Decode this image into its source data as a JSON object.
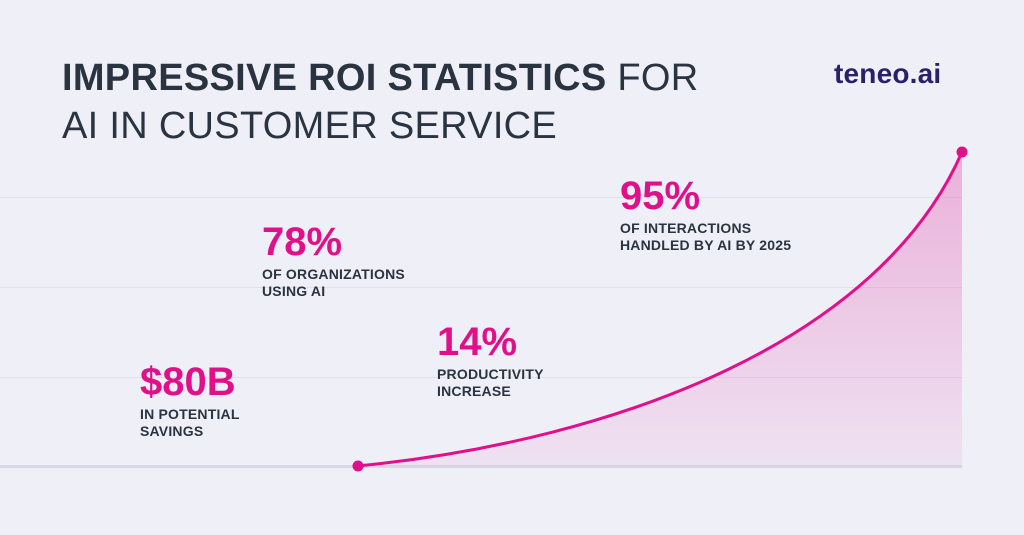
{
  "header": {
    "title_bold": "IMPRESSIVE ROI STATISTICS",
    "title_light_1": "FOR",
    "title_light_2": "AI IN CUSTOMER SERVICE",
    "logo_text": "teneo.ai"
  },
  "stats": [
    {
      "value": "$80B",
      "description": "IN POTENTIAL\nSAVINGS"
    },
    {
      "value": "78%",
      "description": "OF ORGANIZATIONS\nUSING AI"
    },
    {
      "value": "14%",
      "description": "PRODUCTIVITY\nINCREASE"
    },
    {
      "value": "95%",
      "description": "OF INTERACTIONS\nHANDLED BY AI BY 2025"
    }
  ],
  "colors": {
    "accent": "#e0108b",
    "title": "#2a3340",
    "logo": "#2b1f6b",
    "background": "#efeff8"
  }
}
